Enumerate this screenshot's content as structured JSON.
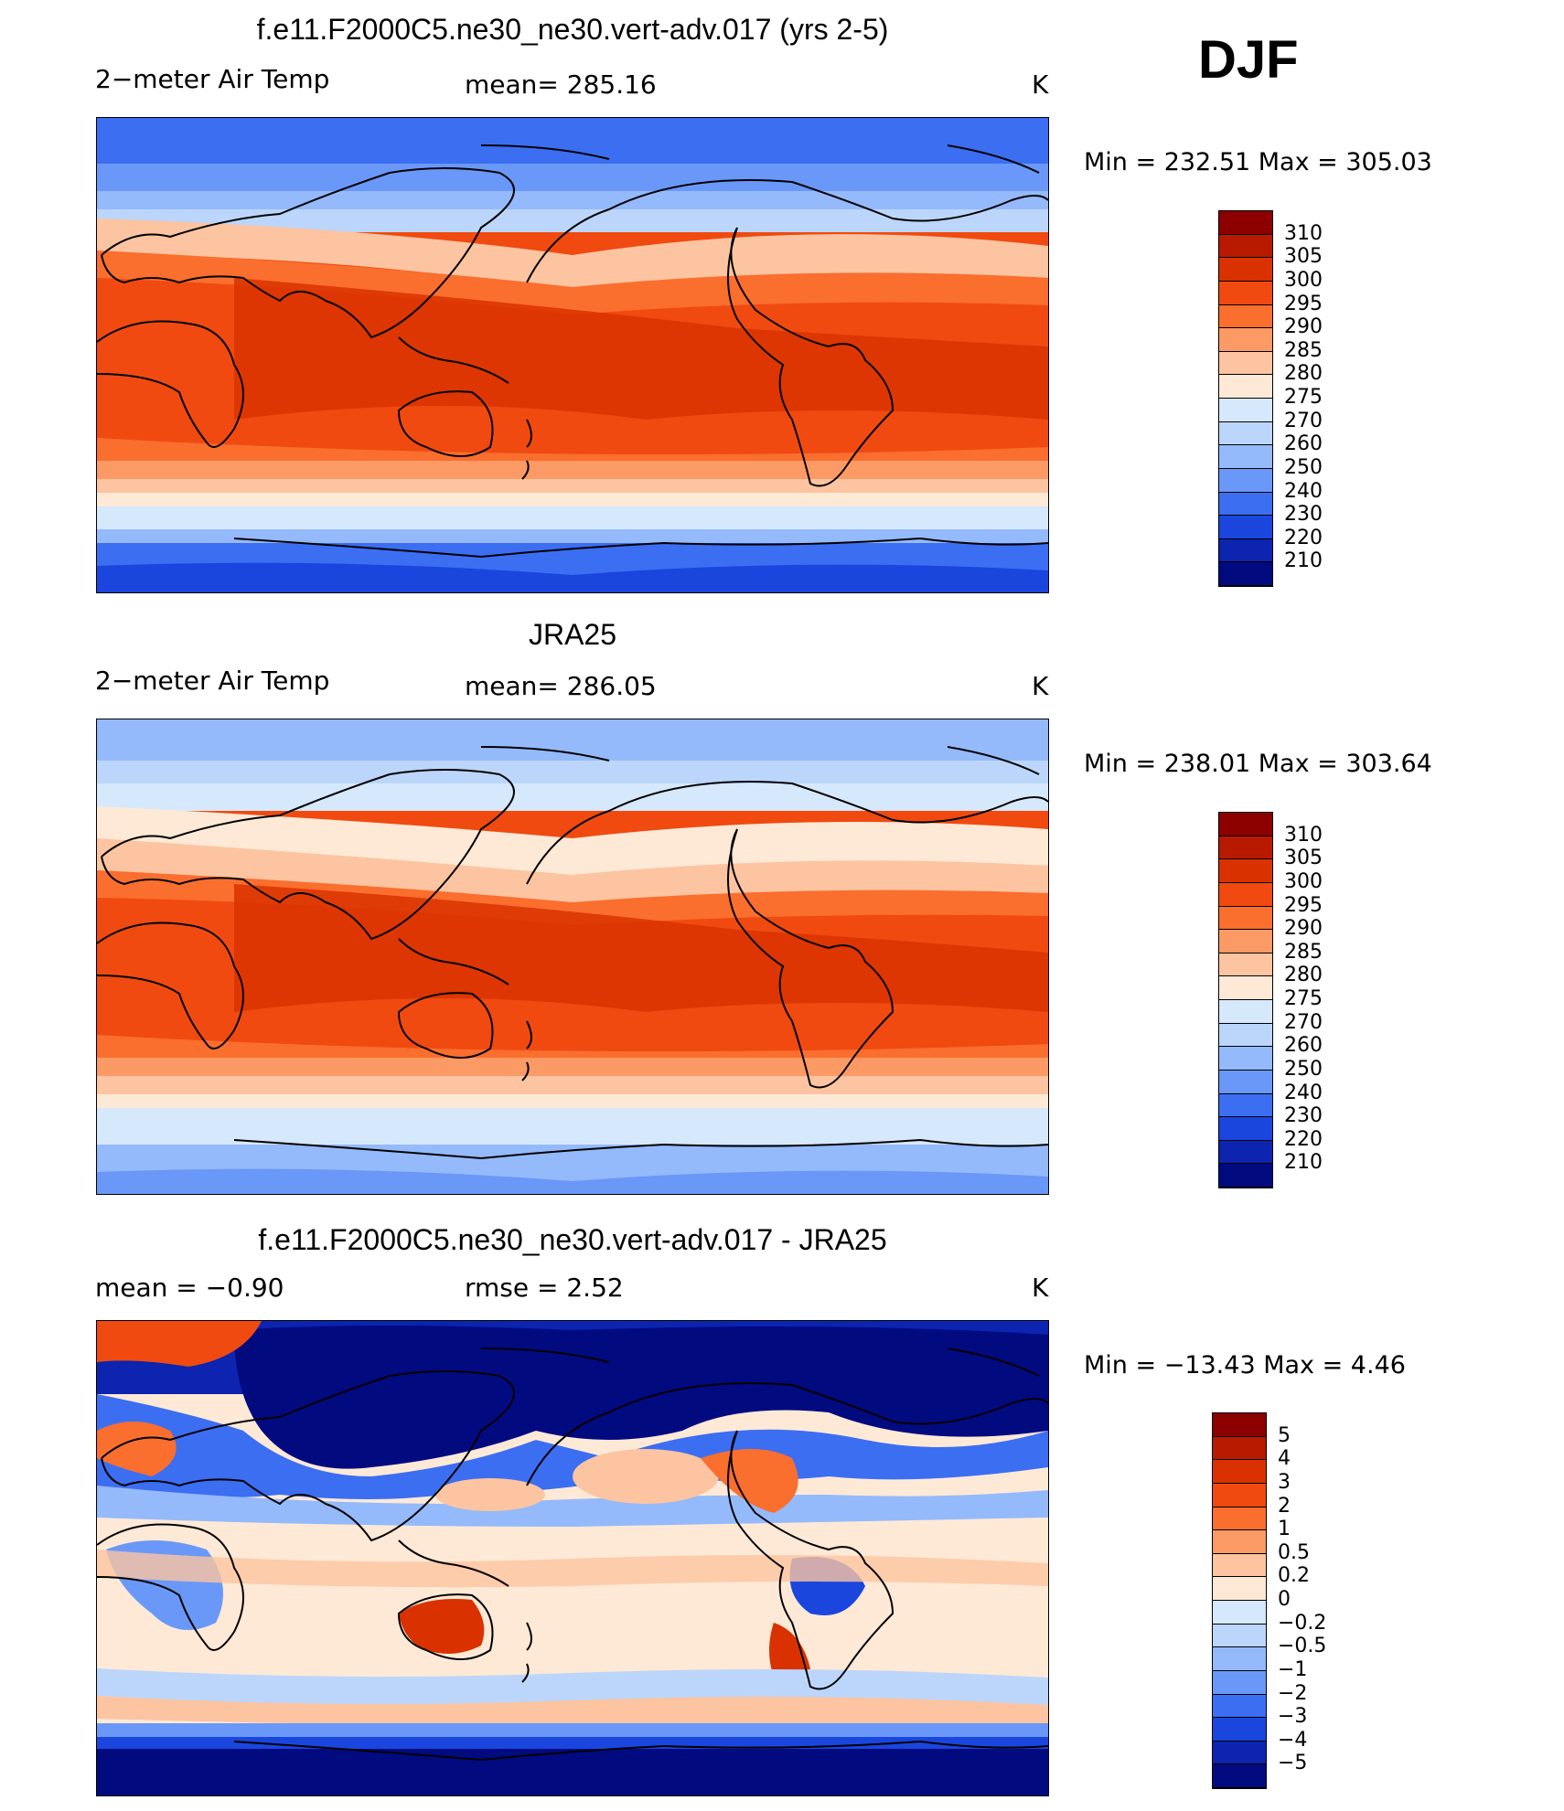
{
  "season": "DJF",
  "panels": [
    {
      "title": "f.e11.F2000C5.ne30_ne30.vert-adv.017 (yrs 2-5)",
      "left_label": "2−meter Air Temp",
      "center_label": "mean=  285.16",
      "units": "K",
      "minmax": "Min  =  232.51  Max  =  305.03",
      "colorbar_levels": [
        "310",
        "305",
        "300",
        "295",
        "290",
        "285",
        "280",
        "275",
        "270",
        "260",
        "250",
        "240",
        "230",
        "220",
        "210"
      ],
      "colors": [
        "#8c0000",
        "#b81a00",
        "#d93200",
        "#f04a10",
        "#fa6e2e",
        "#fb9a64",
        "#fcc4a0",
        "#fde9d6",
        "#d6e8fb",
        "#bcd6fb",
        "#94bafb",
        "#6a98f8",
        "#3c6ef2",
        "#1a46de",
        "#0c24b0",
        "#020a80"
      ]
    },
    {
      "title": "JRA25",
      "left_label": "2−meter Air Temp",
      "center_label": "mean=  286.05",
      "units": "K",
      "minmax": "Min  =  238.01  Max  =  303.64",
      "colorbar_levels": [
        "310",
        "305",
        "300",
        "295",
        "290",
        "285",
        "280",
        "275",
        "270",
        "260",
        "250",
        "240",
        "230",
        "220",
        "210"
      ],
      "colors": [
        "#8c0000",
        "#b81a00",
        "#d93200",
        "#f04a10",
        "#fa6e2e",
        "#fb9a64",
        "#fcc4a0",
        "#fde9d6",
        "#d6e8fb",
        "#bcd6fb",
        "#94bafb",
        "#6a98f8",
        "#3c6ef2",
        "#1a46de",
        "#0c24b0",
        "#020a80"
      ]
    },
    {
      "title": "f.e11.F2000C5.ne30_ne30.vert-adv.017 - JRA25",
      "left_label": "mean  =    −0.90",
      "center_label": "rmse  =     2.52",
      "units": "K",
      "minmax": "Min  =  −13.43  Max  =     4.46",
      "colorbar_levels": [
        "5",
        "4",
        "3",
        "2",
        "1",
        "0.5",
        "0.2",
        "0",
        "−0.2",
        "−0.5",
        "−1",
        "−2",
        "−3",
        "−4",
        "−5"
      ],
      "colors": [
        "#8c0000",
        "#b81a00",
        "#d93200",
        "#f04a10",
        "#fa6e2e",
        "#fb9a64",
        "#fcc4a0",
        "#fde9d6",
        "#d6e8fb",
        "#bcd6fb",
        "#94bafb",
        "#6a98f8",
        "#3c6ef2",
        "#1a46de",
        "#0c24b0",
        "#020a80"
      ]
    }
  ]
}
